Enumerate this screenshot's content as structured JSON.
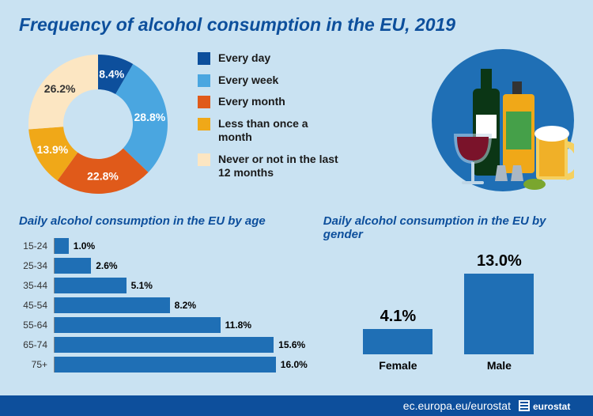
{
  "colors": {
    "page_bg": "#c9e2f2",
    "footer_bg": "#0d4f9c",
    "footer_text": "#ffffff",
    "title": "#0d4f9c",
    "subtitle": "#0d4f9c",
    "text": "#1a1a1a",
    "bar": "#1f6fb5"
  },
  "title": "Frequency of alcohol consumption in the EU, 2019",
  "donut": {
    "type": "donut",
    "inner_radius_ratio": 0.5,
    "label_color": "#ffffff",
    "label_fontsize": 14,
    "segments": [
      {
        "label": "Every day",
        "value": 8.4,
        "display": "8.4%",
        "color": "#0d4f9c"
      },
      {
        "label": "Every week",
        "value": 28.8,
        "display": "28.8%",
        "color": "#4aa6e0"
      },
      {
        "label": "Every month",
        "value": 22.8,
        "display": "22.8%",
        "color": "#e05a1a"
      },
      {
        "label": "Less than once a month",
        "value": 13.9,
        "display": "13.9%",
        "color": "#f0a818"
      },
      {
        "label": "Never or not in the last 12 months",
        "value": 26.2,
        "display": "26.2%",
        "color": "#fce6c2"
      }
    ],
    "last_label_color": "#333333"
  },
  "drinks_illustration": {
    "circle_bg": "#1f6fb5",
    "wine_bottle": "#0b3615",
    "wine_label": "#ffffff",
    "liquor_bottle_body": "#f0a818",
    "liquor_bottle_label": "#45a049",
    "liquor_bottle_cap": "#333333",
    "wine_glass_bowl": "#7a132a",
    "wine_glass_stem": "#bfd6e6",
    "shot_glass": "#aab7c4",
    "beer_foam": "#ffffff",
    "beer_body": "#f0b028",
    "beer_mug": "#f5d060",
    "lime": "#7aa62e"
  },
  "age_chart": {
    "type": "bar-horizontal",
    "title": "Daily alcohol consumption in the EU by age",
    "bar_color": "#1f6fb5",
    "axis_color": "#888888",
    "max_value": 18,
    "rows": [
      {
        "cat": "15-24",
        "value": 1.0,
        "display": "1.0%"
      },
      {
        "cat": "25-34",
        "value": 2.6,
        "display": "2.6%"
      },
      {
        "cat": "35-44",
        "value": 5.1,
        "display": "5.1%"
      },
      {
        "cat": "45-54",
        "value": 8.2,
        "display": "8.2%"
      },
      {
        "cat": "55-64",
        "value": 11.8,
        "display": "11.8%"
      },
      {
        "cat": "65-74",
        "value": 15.6,
        "display": "15.6%"
      },
      {
        "cat": "75+",
        "value": 16.0,
        "display": "16.0%"
      }
    ]
  },
  "gender_chart": {
    "type": "bar-vertical",
    "title": "Daily alcohol consumption in the EU by gender",
    "bar_color": "#1f6fb5",
    "max_value": 14,
    "bars": [
      {
        "cat": "Female",
        "value": 4.1,
        "display": "4.1%"
      },
      {
        "cat": "Male",
        "value": 13.0,
        "display": "13.0%"
      }
    ]
  },
  "footer": {
    "text": "ec.europa.eu/eurostat",
    "logo_box_color": "#ffffff"
  }
}
